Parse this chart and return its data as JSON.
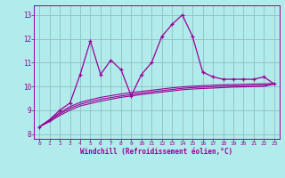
{
  "xlabel": "Windchill (Refroidissement éolien,°C)",
  "bg_color": "#b2ebeb",
  "plot_bg_color": "#b2ebeb",
  "line_color": "#990099",
  "grid_color": "#8fbfbf",
  "ylim": [
    7.8,
    13.4
  ],
  "xlim": [
    -0.5,
    23.5
  ],
  "yticks": [
    8,
    9,
    10,
    11,
    12,
    13
  ],
  "xticks": [
    0,
    1,
    2,
    3,
    4,
    5,
    6,
    7,
    8,
    9,
    10,
    11,
    12,
    13,
    14,
    15,
    16,
    17,
    18,
    19,
    20,
    21,
    22,
    23
  ],
  "line1_x": [
    0,
    1,
    2,
    3,
    4,
    5,
    6,
    7,
    8,
    9,
    10,
    11,
    12,
    13,
    14,
    15,
    16,
    17,
    18,
    19,
    20,
    21,
    22,
    23
  ],
  "line1_y": [
    8.3,
    8.6,
    9.0,
    9.3,
    10.5,
    11.9,
    10.5,
    11.1,
    10.7,
    9.6,
    10.5,
    11.0,
    12.1,
    12.6,
    13.0,
    12.1,
    10.6,
    10.4,
    10.3,
    10.3,
    10.3,
    10.3,
    10.4,
    10.1
  ],
  "line2_x": [
    0,
    1,
    2,
    3,
    4,
    5,
    6,
    7,
    8,
    9,
    10,
    11,
    12,
    13,
    14,
    15,
    16,
    17,
    18,
    19,
    20,
    21,
    22,
    23
  ],
  "line2_y": [
    8.3,
    8.52,
    8.78,
    9.0,
    9.18,
    9.28,
    9.38,
    9.46,
    9.54,
    9.6,
    9.66,
    9.71,
    9.76,
    9.81,
    9.86,
    9.89,
    9.91,
    9.93,
    9.95,
    9.97,
    9.98,
    9.99,
    10.0,
    10.1
  ],
  "line3_x": [
    0,
    1,
    2,
    3,
    4,
    5,
    6,
    7,
    8,
    9,
    10,
    11,
    12,
    13,
    14,
    15,
    16,
    17,
    18,
    19,
    20,
    21,
    22,
    23
  ],
  "line3_y": [
    8.3,
    8.56,
    8.84,
    9.08,
    9.25,
    9.36,
    9.46,
    9.53,
    9.6,
    9.66,
    9.72,
    9.77,
    9.82,
    9.87,
    9.92,
    9.95,
    9.97,
    9.99,
    10.01,
    10.02,
    10.03,
    10.04,
    10.05,
    10.1
  ],
  "line4_x": [
    0,
    1,
    2,
    3,
    4,
    5,
    6,
    7,
    8,
    9,
    10,
    11,
    12,
    13,
    14,
    15,
    16,
    17,
    18,
    19,
    20,
    21,
    22,
    23
  ],
  "line4_y": [
    8.3,
    8.6,
    8.9,
    9.15,
    9.33,
    9.44,
    9.54,
    9.61,
    9.68,
    9.74,
    9.79,
    9.84,
    9.89,
    9.94,
    9.98,
    10.01,
    10.03,
    10.05,
    10.07,
    10.08,
    10.09,
    10.1,
    10.11,
    10.12
  ]
}
